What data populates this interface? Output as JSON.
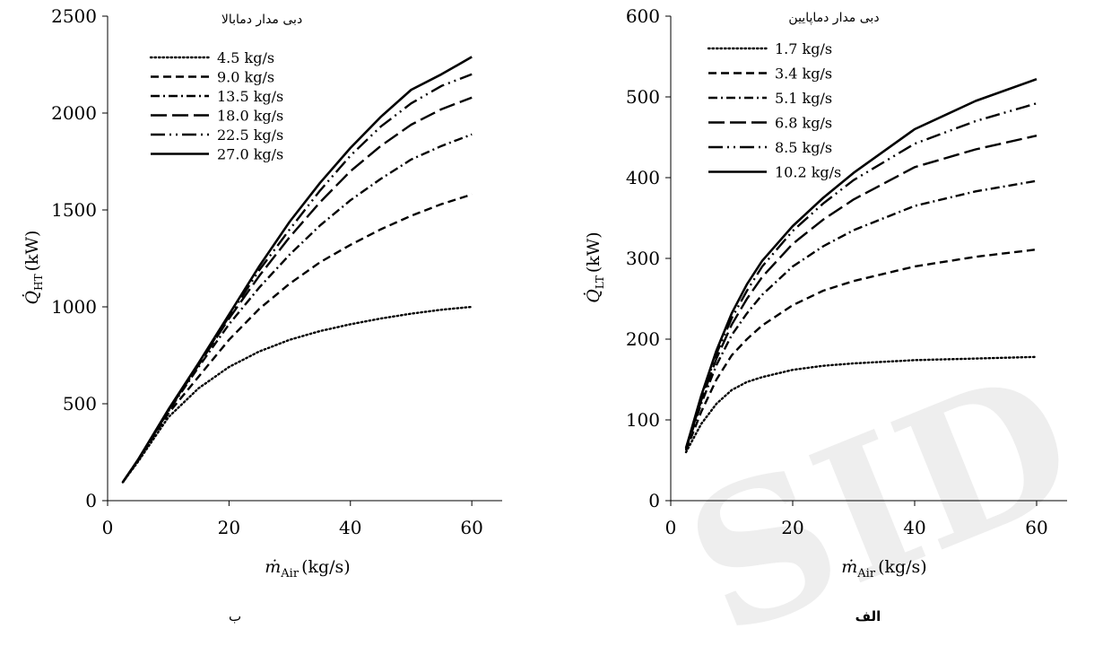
{
  "chart_data": [
    {
      "type": "line",
      "panel_caption": "ب",
      "legend_title": "دبی مدار دمابالا",
      "xlabel": "ṁ",
      "xlabel_sub": "Air",
      "xlabel_unit": "(kg/s)",
      "ylabel": "Q̇",
      "ylabel_sub": "HT",
      "ylabel_unit": "(kW)",
      "xlim": [
        0,
        65
      ],
      "ylim": [
        0,
        2500
      ],
      "xticks": [
        0,
        20,
        40,
        60
      ],
      "yticks": [
        0,
        500,
        1000,
        1500,
        2000,
        2500
      ],
      "grid": false,
      "legend_position": "top-left",
      "series": [
        {
          "name": "4.5 kg/s",
          "dash": "dot",
          "x": [
            2.5,
            5,
            10,
            15,
            20,
            25,
            30,
            35,
            40,
            45,
            50,
            55,
            60
          ],
          "y": [
            95,
            200,
            430,
            580,
            690,
            770,
            830,
            875,
            910,
            940,
            965,
            985,
            1000
          ]
        },
        {
          "name": "9.0 kg/s",
          "dash": "dash",
          "x": [
            2.5,
            5,
            10,
            15,
            20,
            25,
            30,
            35,
            40,
            45,
            50,
            55,
            60
          ],
          "y": [
            95,
            205,
            450,
            640,
            830,
            990,
            1120,
            1230,
            1320,
            1400,
            1470,
            1530,
            1580
          ]
        },
        {
          "name": "13.5 kg/s",
          "dash": "dashdot",
          "x": [
            2.5,
            5,
            10,
            15,
            20,
            25,
            30,
            35,
            40,
            45,
            50,
            55,
            60
          ],
          "y": [
            95,
            210,
            460,
            690,
            910,
            1100,
            1270,
            1420,
            1550,
            1660,
            1760,
            1830,
            1890
          ]
        },
        {
          "name": "18.0 kg/s",
          "dash": "longdash",
          "x": [
            2.5,
            5,
            10,
            15,
            20,
            25,
            30,
            35,
            40,
            45,
            50,
            55,
            60
          ],
          "y": [
            95,
            210,
            465,
            700,
            940,
            1160,
            1360,
            1540,
            1700,
            1830,
            1940,
            2020,
            2080
          ]
        },
        {
          "name": "22.5 kg/s",
          "dash": "longdashdotdot",
          "x": [
            2.5,
            5,
            10,
            15,
            20,
            25,
            30,
            35,
            40,
            45,
            50,
            55,
            60
          ],
          "y": [
            95,
            210,
            465,
            705,
            950,
            1190,
            1400,
            1600,
            1780,
            1930,
            2050,
            2140,
            2200
          ]
        },
        {
          "name": "27.0 kg/s",
          "dash": "solid",
          "x": [
            2.5,
            5,
            10,
            15,
            20,
            25,
            30,
            35,
            40,
            45,
            50,
            55,
            60
          ],
          "y": [
            95,
            210,
            470,
            710,
            960,
            1210,
            1440,
            1640,
            1820,
            1980,
            2120,
            2200,
            2290
          ]
        }
      ]
    },
    {
      "type": "line",
      "panel_caption": "الف",
      "legend_title": "دبی مدار دماپایین",
      "xlabel": "ṁ",
      "xlabel_sub": "Air",
      "xlabel_unit": "(kg/s)",
      "ylabel": "Q̇",
      "ylabel_sub": "LT",
      "ylabel_unit": "(kW)",
      "xlim": [
        0,
        65
      ],
      "ylim": [
        0,
        600
      ],
      "xticks": [
        0,
        20,
        40,
        60
      ],
      "yticks": [
        0,
        100,
        200,
        300,
        400,
        500,
        600
      ],
      "grid": false,
      "legend_position": "top-left",
      "series": [
        {
          "name": "1.7 kg/s",
          "dash": "dot",
          "x": [
            2.5,
            5,
            7.5,
            10,
            12.5,
            15,
            20,
            25,
            30,
            40,
            50,
            60
          ],
          "y": [
            60,
            95,
            120,
            137,
            147,
            153,
            162,
            167,
            170,
            174,
            176,
            178
          ]
        },
        {
          "name": "3.4 kg/s",
          "dash": "dash",
          "x": [
            2.5,
            5,
            7.5,
            10,
            12.5,
            15,
            20,
            25,
            30,
            40,
            50,
            60
          ],
          "y": [
            62,
            110,
            150,
            180,
            200,
            217,
            242,
            260,
            272,
            290,
            302,
            311
          ]
        },
        {
          "name": "5.1 kg/s",
          "dash": "dashdot",
          "x": [
            2.5,
            5,
            7.5,
            10,
            12.5,
            15,
            20,
            25,
            30,
            40,
            50,
            60
          ],
          "y": [
            63,
            120,
            168,
            205,
            232,
            255,
            290,
            315,
            335,
            365,
            383,
            396
          ]
        },
        {
          "name": "6.8 kg/s",
          "dash": "longdash",
          "x": [
            2.5,
            5,
            7.5,
            10,
            12.5,
            15,
            20,
            25,
            30,
            40,
            50,
            60
          ],
          "y": [
            64,
            124,
            176,
            218,
            250,
            277,
            318,
            348,
            373,
            413,
            435,
            452
          ]
        },
        {
          "name": "8.5 kg/s",
          "dash": "longdashdotdot",
          "x": [
            2.5,
            5,
            7.5,
            10,
            12.5,
            15,
            20,
            25,
            30,
            40,
            50,
            60
          ],
          "y": [
            65,
            127,
            182,
            226,
            260,
            290,
            334,
            368,
            397,
            442,
            470,
            492
          ]
        },
        {
          "name": "10.2 kg/s",
          "dash": "solid",
          "x": [
            2.5,
            5,
            7.5,
            10,
            12.5,
            15,
            20,
            25,
            30,
            40,
            50,
            60
          ],
          "y": [
            65,
            130,
            186,
            232,
            268,
            297,
            340,
            375,
            406,
            460,
            495,
            522
          ]
        }
      ]
    }
  ],
  "watermark": "SID"
}
